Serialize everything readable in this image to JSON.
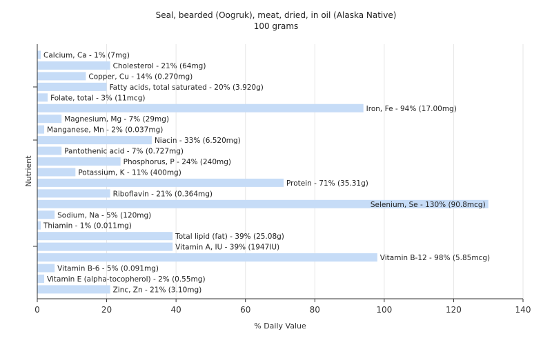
{
  "chart_data": {
    "type": "bar",
    "orientation": "horizontal",
    "title": "Seal, bearded (Oogruk), meat, dried, in oil (Alaska Native)",
    "subtitle": "100 grams",
    "xlabel": "% Daily Value",
    "ylabel": "Nutrient",
    "xlim": [
      0,
      140
    ],
    "xticks": [
      "0",
      "20",
      "40",
      "60",
      "80",
      "100",
      "120",
      "140"
    ],
    "grid": "vertical",
    "bar_color": "#c6dcf7",
    "categories": [
      "Calcium, Ca",
      "Cholesterol",
      "Copper, Cu",
      "Fatty acids, total saturated",
      "Folate, total",
      "Iron, Fe",
      "Magnesium, Mg",
      "Manganese, Mn",
      "Niacin",
      "Pantothenic acid",
      "Phosphorus, P",
      "Potassium, K",
      "Protein",
      "Riboflavin",
      "Selenium, Se",
      "Sodium, Na",
      "Thiamin",
      "Total lipid (fat)",
      "Vitamin A, IU",
      "Vitamin B-12",
      "Vitamin B-6",
      "Vitamin E (alpha-tocopherol)",
      "Zinc, Zn"
    ],
    "values": [
      1,
      21,
      14,
      20,
      3,
      94,
      7,
      2,
      33,
      7,
      24,
      11,
      71,
      21,
      130,
      5,
      1,
      39,
      39,
      98,
      5,
      2,
      21
    ],
    "labels": [
      "Calcium, Ca - 1% (7mg)",
      "Cholesterol - 21% (64mg)",
      "Copper, Cu - 14% (0.270mg)",
      "Fatty acids, total saturated - 20% (3.920g)",
      "Folate, total - 3% (11mcg)",
      "Iron, Fe - 94% (17.00mg)",
      "Magnesium, Mg - 7% (29mg)",
      "Manganese, Mn - 2% (0.037mg)",
      "Niacin - 33% (6.520mg)",
      "Pantothenic acid - 7% (0.727mg)",
      "Phosphorus, P - 24% (240mg)",
      "Potassium, K - 11% (400mg)",
      "Protein - 71% (35.31g)",
      "Riboflavin - 21% (0.364mg)",
      "Selenium, Se - 130% (90.8mcg)",
      "Sodium, Na - 5% (120mg)",
      "Thiamin - 1% (0.011mg)",
      "Total lipid (fat) - 39% (25.08g)",
      "Vitamin A, IU - 39% (1947IU)",
      "Vitamin B-12 - 98% (5.85mcg)",
      "Vitamin B-6 - 5% (0.091mg)",
      "Vitamin E (alpha-tocopherol) - 2% (0.55mg)",
      "Zinc, Zn - 21% (3.10mg)"
    ]
  }
}
